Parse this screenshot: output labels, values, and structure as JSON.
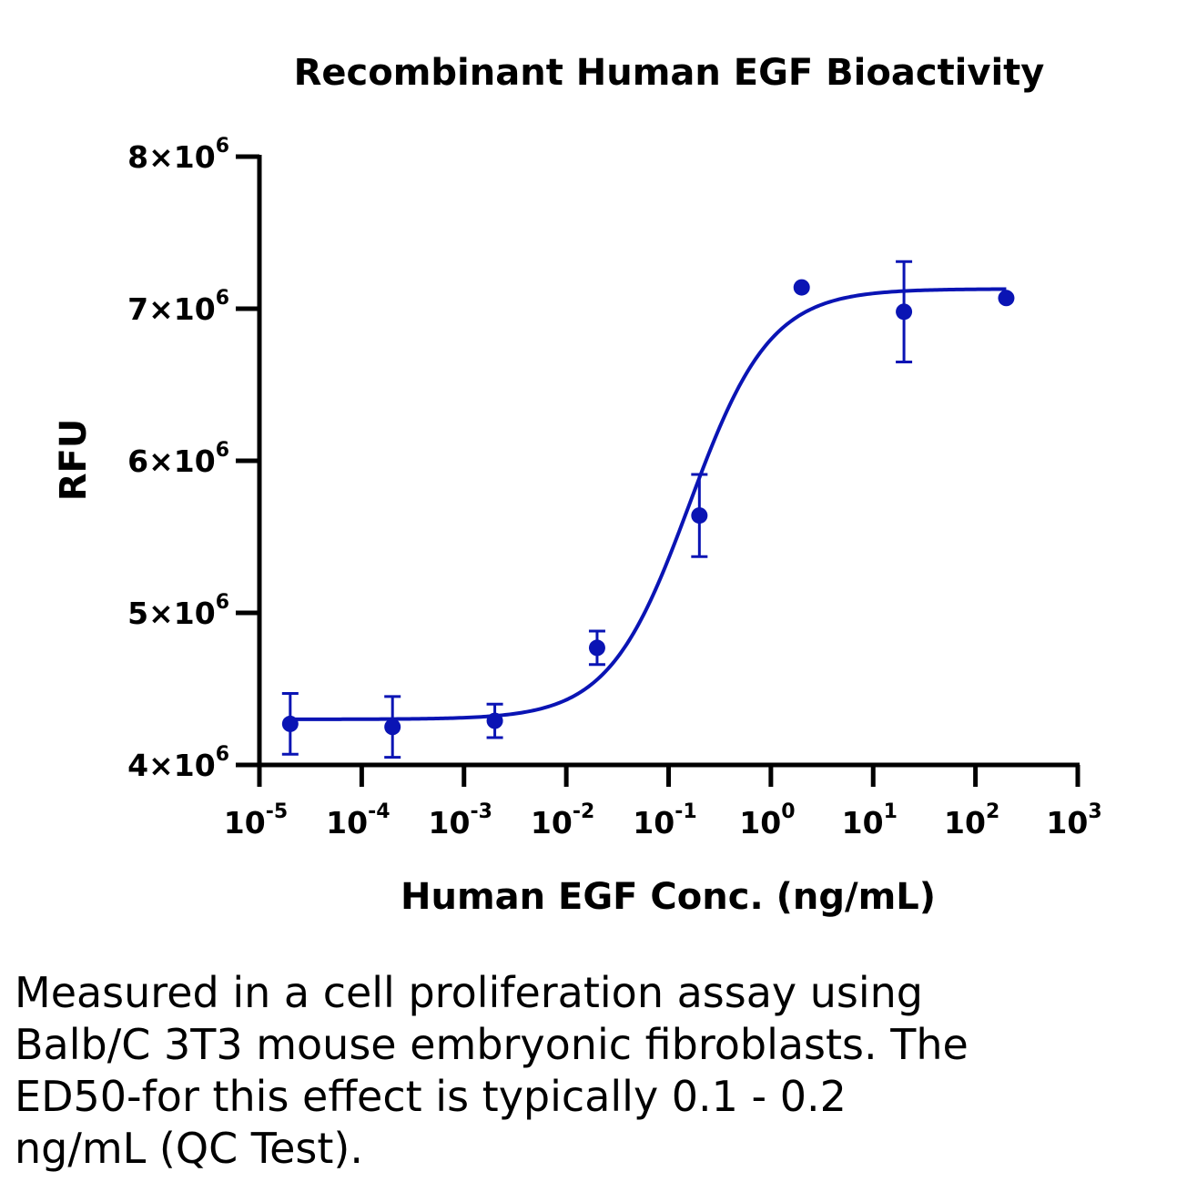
{
  "chart_data": {
    "type": "scatter",
    "title": "Recombinant Human EGF Bioactivity",
    "xlabel": "Human EGF Conc. (ng/mL)",
    "ylabel": "RFU",
    "x_scale": "log",
    "xlim": [
      1e-05,
      1000
    ],
    "ylim": [
      4000000,
      8000000
    ],
    "x_ticks": [
      {
        "value": 1e-05,
        "base": "10",
        "exp": "-5"
      },
      {
        "value": 0.0001,
        "base": "10",
        "exp": "-4"
      },
      {
        "value": 0.001,
        "base": "10",
        "exp": "-3"
      },
      {
        "value": 0.01,
        "base": "10",
        "exp": "-2"
      },
      {
        "value": 0.1,
        "base": "10",
        "exp": "-1"
      },
      {
        "value": 1,
        "base": "10",
        "exp": "0"
      },
      {
        "value": 10,
        "base": "10",
        "exp": "1"
      },
      {
        "value": 100,
        "base": "10",
        "exp": "2"
      },
      {
        "value": 1000,
        "base": "10",
        "exp": "3"
      }
    ],
    "y_ticks": [
      {
        "value": 4000000,
        "mantissa": "4",
        "exp": "6"
      },
      {
        "value": 5000000,
        "mantissa": "5",
        "exp": "6"
      },
      {
        "value": 6000000,
        "mantissa": "6",
        "exp": "6"
      },
      {
        "value": 7000000,
        "mantissa": "7",
        "exp": "6"
      },
      {
        "value": 8000000,
        "mantissa": "8",
        "exp": "6"
      }
    ],
    "color": "#0a14b4",
    "grid": false,
    "series": [
      {
        "points": [
          {
            "x": 2e-05,
            "y": 4270000,
            "err": 200000
          },
          {
            "x": 0.0002,
            "y": 4250000,
            "err": 200000
          },
          {
            "x": 0.002,
            "y": 4290000,
            "err": 110000
          },
          {
            "x": 0.02,
            "y": 4770000,
            "err": 110000
          },
          {
            "x": 0.2,
            "y": 5640000,
            "err": 270000
          },
          {
            "x": 2,
            "y": 7140000,
            "err": 0
          },
          {
            "x": 20,
            "y": 6980000,
            "err": 330000
          },
          {
            "x": 200,
            "y": 7070000,
            "err": 0
          }
        ]
      }
    ],
    "fit": {
      "model": "4PL",
      "bottom": 4300000,
      "top": 7130000,
      "ec50": 0.16,
      "hill": 1.1,
      "x_range": [
        2e-05,
        200
      ]
    }
  },
  "caption": {
    "lines": [
      "Measured in a cell proliferation assay using",
      "Balb/C 3T3 mouse embryonic fibroblasts. The",
      "ED50-for this effect is typically 0.1 - 0.2",
      "ng/mL (QC Test)."
    ]
  }
}
